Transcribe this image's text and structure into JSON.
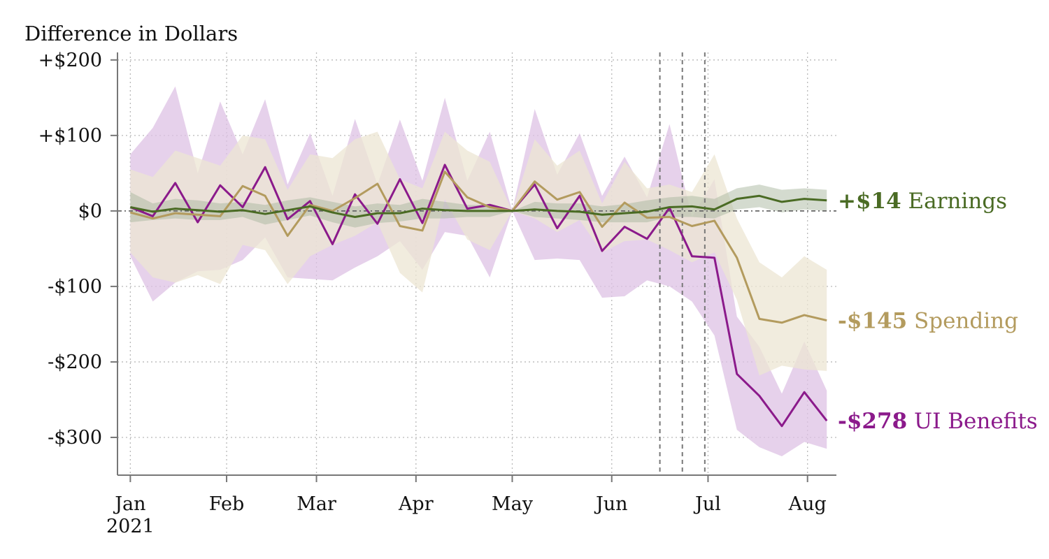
{
  "chart_data": {
    "type": "line",
    "ylabel": "Difference in Dollars",
    "ylim": [
      -350,
      210
    ],
    "y_ticks": [
      {
        "value": 200,
        "label": "+$200"
      },
      {
        "value": 100,
        "label": "+$100"
      },
      {
        "value": 0,
        "label": "$0"
      },
      {
        "value": -100,
        "label": "-$100"
      },
      {
        "value": -200,
        "label": "-$200"
      },
      {
        "value": -300,
        "label": "-$300"
      }
    ],
    "x_ticks": [
      {
        "date": "2021-01-02",
        "label": "Jan",
        "sublabel": "2021"
      },
      {
        "date": "2021-02-01",
        "label": "Feb"
      },
      {
        "date": "2021-03-01",
        "label": "Mar"
      },
      {
        "date": "2021-04-01",
        "label": "Apr"
      },
      {
        "date": "2021-05-01",
        "label": "May"
      },
      {
        "date": "2021-06-01",
        "label": "Jun"
      },
      {
        "date": "2021-07-01",
        "label": "Jul"
      },
      {
        "date": "2021-08-01",
        "label": "Aug"
      }
    ],
    "xlim": [
      "2020-12-29",
      "2021-08-10"
    ],
    "grid": true,
    "reference_line_y": 0,
    "vertical_lines": [
      "2021-06-16",
      "2021-06-23",
      "2021-06-30"
    ],
    "dates": [
      "2021-01-02",
      "2021-01-09",
      "2021-01-16",
      "2021-01-23",
      "2021-01-30",
      "2021-02-06",
      "2021-02-13",
      "2021-02-20",
      "2021-02-27",
      "2021-03-06",
      "2021-03-13",
      "2021-03-20",
      "2021-03-27",
      "2021-04-03",
      "2021-04-10",
      "2021-04-17",
      "2021-04-24",
      "2021-05-01",
      "2021-05-08",
      "2021-05-15",
      "2021-05-22",
      "2021-05-29",
      "2021-06-05",
      "2021-06-12",
      "2021-06-19",
      "2021-06-26",
      "2021-07-03",
      "2021-07-10",
      "2021-07-17",
      "2021-07-24",
      "2021-07-31",
      "2021-08-07"
    ],
    "series": [
      {
        "name": "UI Benefits",
        "end_value_label": "-$278",
        "color": "#8b1a8b",
        "band_color": "#ddc2e4",
        "band_opacity": 0.75,
        "values": [
          5,
          -7,
          37,
          -15,
          34,
          5,
          58,
          -11,
          13,
          -44,
          22,
          -17,
          42,
          -16,
          61,
          3,
          8,
          0,
          35,
          -23,
          20,
          -53,
          -21,
          -37,
          4,
          -60,
          -62,
          -216,
          -245,
          -285,
          -240,
          -278
        ],
        "lower": [
          -60,
          -120,
          -95,
          -80,
          -78,
          -65,
          -35,
          -88,
          -90,
          -92,
          -75,
          -60,
          -40,
          -78,
          -28,
          -33,
          -88,
          0,
          -65,
          -63,
          -65,
          -115,
          -113,
          -92,
          -100,
          -120,
          -165,
          -290,
          -313,
          -325,
          -306,
          -315
        ],
        "upper": [
          75,
          110,
          165,
          50,
          145,
          75,
          148,
          35,
          103,
          20,
          122,
          35,
          121,
          40,
          150,
          40,
          105,
          0,
          135,
          48,
          103,
          20,
          72,
          18,
          115,
          -8,
          42,
          -140,
          -180,
          -242,
          -173,
          -238
        ]
      },
      {
        "name": "Spending",
        "end_value_label": "-$145",
        "color": "#b39b5e",
        "band_color": "#ece6d3",
        "band_opacity": 0.75,
        "values": [
          -2,
          -10,
          -3,
          -5,
          -7,
          33,
          20,
          -33,
          8,
          0,
          17,
          36,
          -20,
          -26,
          52,
          18,
          5,
          0,
          39,
          15,
          25,
          -21,
          11,
          -9,
          -8,
          -20,
          -13,
          -62,
          -143,
          -148,
          -138,
          -145
        ],
        "lower": [
          -55,
          -88,
          -95,
          -85,
          -97,
          -45,
          -52,
          -97,
          -60,
          -45,
          -33,
          -15,
          -82,
          -108,
          15,
          -38,
          -52,
          0,
          -10,
          -28,
          -12,
          -55,
          -40,
          -38,
          -52,
          -68,
          -55,
          -118,
          -218,
          -205,
          -210,
          -212
        ],
        "upper": [
          55,
          45,
          80,
          70,
          60,
          100,
          95,
          28,
          75,
          70,
          95,
          105,
          42,
          30,
          105,
          80,
          65,
          0,
          95,
          60,
          80,
          10,
          65,
          30,
          35,
          25,
          75,
          -10,
          -68,
          -88,
          -60,
          -78
        ]
      },
      {
        "name": "Earnings",
        "end_value_label": "+$14",
        "color": "#4a6b24",
        "band_color": "#a9b8a0",
        "band_opacity": 0.5,
        "values": [
          5,
          -1,
          3,
          1,
          -1,
          1,
          -4,
          1,
          6,
          -2,
          -8,
          -3,
          -3,
          3,
          1,
          0,
          0,
          0,
          2,
          0,
          -1,
          -5,
          -3,
          -1,
          5,
          6,
          2,
          16,
          20,
          12,
          16,
          14
        ],
        "lower": [
          -15,
          -12,
          -10,
          -12,
          -12,
          -8,
          -18,
          -12,
          -6,
          -15,
          -22,
          -16,
          -14,
          -10,
          -10,
          -8,
          -8,
          0,
          -8,
          -10,
          -12,
          -15,
          -15,
          -15,
          -8,
          -8,
          -10,
          2,
          5,
          -2,
          2,
          0
        ],
        "upper": [
          25,
          10,
          16,
          14,
          10,
          12,
          8,
          14,
          18,
          12,
          6,
          10,
          8,
          16,
          12,
          8,
          8,
          0,
          12,
          10,
          10,
          6,
          9,
          14,
          18,
          20,
          16,
          30,
          35,
          28,
          30,
          28
        ]
      }
    ]
  }
}
